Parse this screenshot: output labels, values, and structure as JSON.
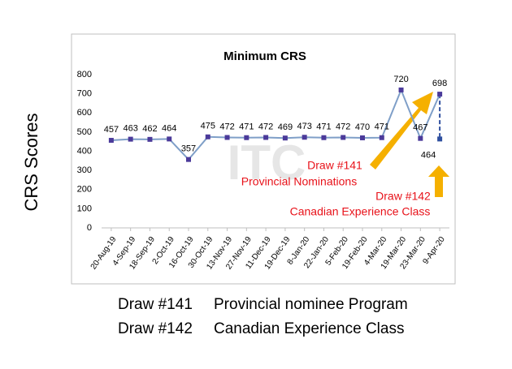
{
  "chart_data": {
    "type": "line",
    "title": "Minimum CRS",
    "y_label": "CRS Scores",
    "categories": [
      "20-Aug-19",
      "4-Sep-19",
      "18-Sep-19",
      "2-Oct-19",
      "16-Oct-19",
      "30-Oct-19",
      "13-Nov-19",
      "27-Nov-19",
      "11-Dec-19",
      "19-Dec-19",
      "8-Jan-20",
      "22-Jan-20",
      "5-Feb-20",
      "19-Feb-20",
      "4-Mar-20",
      "19-Mar-20",
      "23-Mar-20",
      "9-Apr-20"
    ],
    "series": [
      {
        "color": "#7f9fc8",
        "marker_color": "#4b3a9a",
        "values": [
          457,
          463,
          462,
          464,
          357,
          475,
          472,
          471,
          472,
          469,
          473,
          471,
          472,
          470,
          471,
          720,
          467,
          698
        ]
      },
      {
        "color": "#7f9fc8",
        "marker_color": "#2f4f9f",
        "values": [
          null,
          null,
          null,
          null,
          null,
          null,
          null,
          null,
          null,
          null,
          null,
          null,
          null,
          null,
          null,
          null,
          null,
          464
        ]
      }
    ],
    "ylim": [
      0,
      800
    ],
    "yticks": [
      0,
      100,
      200,
      300,
      400,
      500,
      600,
      700,
      800
    ],
    "grid": false,
    "watermark": "ITC",
    "annotations": [
      {
        "text": "Draw #141",
        "color": "#e8121a"
      },
      {
        "text": "Provincial Nominations",
        "color": "#e8121a"
      },
      {
        "text": "Draw #142",
        "color": "#e8121a"
      },
      {
        "text": "Canadian Experience Class",
        "color": "#e8121a"
      }
    ],
    "footer": [
      [
        "Draw #141",
        "Provincial nominee Program"
      ],
      [
        "Draw #142",
        "Canadian Experience Class"
      ]
    ]
  }
}
